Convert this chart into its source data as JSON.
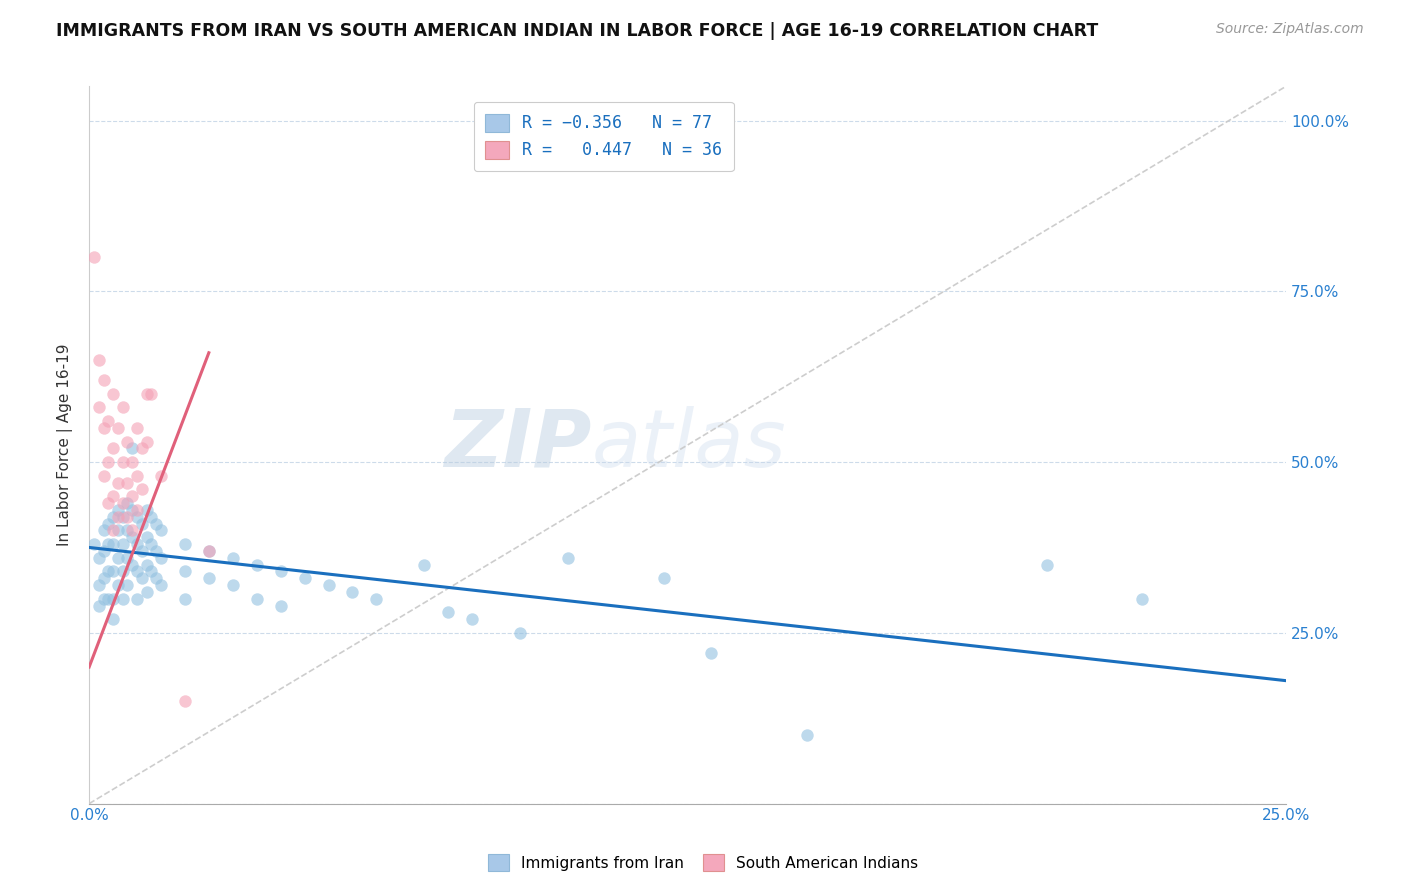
{
  "title": "IMMIGRANTS FROM IRAN VS SOUTH AMERICAN INDIAN IN LABOR FORCE | AGE 16-19 CORRELATION CHART",
  "source": "Source: ZipAtlas.com",
  "ylabel": "In Labor Force | Age 16-19",
  "xlim": [
    0.0,
    0.25
  ],
  "ylim": [
    0.0,
    1.05
  ],
  "iran_color": "#92c0e0",
  "sam_color": "#f4a0b5",
  "iran_trend_color": "#1a6fbe",
  "sam_trend_color": "#e0607a",
  "diagonal_color": "#c8c8c8",
  "watermark_zip": "ZIP",
  "watermark_atlas": "atlas",
  "iran_scatter": [
    [
      0.001,
      0.38
    ],
    [
      0.002,
      0.36
    ],
    [
      0.002,
      0.32
    ],
    [
      0.002,
      0.29
    ],
    [
      0.003,
      0.4
    ],
    [
      0.003,
      0.37
    ],
    [
      0.003,
      0.33
    ],
    [
      0.003,
      0.3
    ],
    [
      0.004,
      0.41
    ],
    [
      0.004,
      0.38
    ],
    [
      0.004,
      0.34
    ],
    [
      0.004,
      0.3
    ],
    [
      0.005,
      0.42
    ],
    [
      0.005,
      0.38
    ],
    [
      0.005,
      0.34
    ],
    [
      0.005,
      0.3
    ],
    [
      0.005,
      0.27
    ],
    [
      0.006,
      0.43
    ],
    [
      0.006,
      0.4
    ],
    [
      0.006,
      0.36
    ],
    [
      0.006,
      0.32
    ],
    [
      0.007,
      0.42
    ],
    [
      0.007,
      0.38
    ],
    [
      0.007,
      0.34
    ],
    [
      0.007,
      0.3
    ],
    [
      0.008,
      0.44
    ],
    [
      0.008,
      0.4
    ],
    [
      0.008,
      0.36
    ],
    [
      0.008,
      0.32
    ],
    [
      0.009,
      0.43
    ],
    [
      0.009,
      0.39
    ],
    [
      0.009,
      0.35
    ],
    [
      0.009,
      0.52
    ],
    [
      0.01,
      0.42
    ],
    [
      0.01,
      0.38
    ],
    [
      0.01,
      0.34
    ],
    [
      0.01,
      0.3
    ],
    [
      0.011,
      0.41
    ],
    [
      0.011,
      0.37
    ],
    [
      0.011,
      0.33
    ],
    [
      0.012,
      0.43
    ],
    [
      0.012,
      0.39
    ],
    [
      0.012,
      0.35
    ],
    [
      0.012,
      0.31
    ],
    [
      0.013,
      0.42
    ],
    [
      0.013,
      0.38
    ],
    [
      0.013,
      0.34
    ],
    [
      0.014,
      0.41
    ],
    [
      0.014,
      0.37
    ],
    [
      0.014,
      0.33
    ],
    [
      0.015,
      0.4
    ],
    [
      0.015,
      0.36
    ],
    [
      0.015,
      0.32
    ],
    [
      0.02,
      0.38
    ],
    [
      0.02,
      0.34
    ],
    [
      0.02,
      0.3
    ],
    [
      0.025,
      0.37
    ],
    [
      0.025,
      0.33
    ],
    [
      0.03,
      0.36
    ],
    [
      0.03,
      0.32
    ],
    [
      0.035,
      0.35
    ],
    [
      0.035,
      0.3
    ],
    [
      0.04,
      0.34
    ],
    [
      0.04,
      0.29
    ],
    [
      0.045,
      0.33
    ],
    [
      0.05,
      0.32
    ],
    [
      0.055,
      0.31
    ],
    [
      0.06,
      0.3
    ],
    [
      0.07,
      0.35
    ],
    [
      0.075,
      0.28
    ],
    [
      0.08,
      0.27
    ],
    [
      0.09,
      0.25
    ],
    [
      0.1,
      0.36
    ],
    [
      0.12,
      0.33
    ],
    [
      0.13,
      0.22
    ],
    [
      0.15,
      0.1
    ],
    [
      0.2,
      0.35
    ],
    [
      0.22,
      0.3
    ]
  ],
  "sam_scatter": [
    [
      0.001,
      0.8
    ],
    [
      0.002,
      0.65
    ],
    [
      0.002,
      0.58
    ],
    [
      0.003,
      0.62
    ],
    [
      0.003,
      0.55
    ],
    [
      0.003,
      0.48
    ],
    [
      0.004,
      0.56
    ],
    [
      0.004,
      0.5
    ],
    [
      0.004,
      0.44
    ],
    [
      0.005,
      0.6
    ],
    [
      0.005,
      0.52
    ],
    [
      0.005,
      0.45
    ],
    [
      0.005,
      0.4
    ],
    [
      0.006,
      0.55
    ],
    [
      0.006,
      0.47
    ],
    [
      0.006,
      0.42
    ],
    [
      0.007,
      0.58
    ],
    [
      0.007,
      0.5
    ],
    [
      0.007,
      0.44
    ],
    [
      0.008,
      0.53
    ],
    [
      0.008,
      0.47
    ],
    [
      0.008,
      0.42
    ],
    [
      0.009,
      0.5
    ],
    [
      0.009,
      0.45
    ],
    [
      0.009,
      0.4
    ],
    [
      0.01,
      0.55
    ],
    [
      0.01,
      0.48
    ],
    [
      0.01,
      0.43
    ],
    [
      0.011,
      0.52
    ],
    [
      0.011,
      0.46
    ],
    [
      0.012,
      0.6
    ],
    [
      0.012,
      0.53
    ],
    [
      0.013,
      0.6
    ],
    [
      0.015,
      0.48
    ],
    [
      0.02,
      0.15
    ],
    [
      0.025,
      0.37
    ]
  ],
  "iran_trend_x": [
    0.0,
    0.25
  ],
  "iran_trend_y": [
    0.375,
    0.18
  ],
  "sam_trend_x": [
    0.0,
    0.025
  ],
  "sam_trend_y": [
    0.2,
    0.66
  ]
}
